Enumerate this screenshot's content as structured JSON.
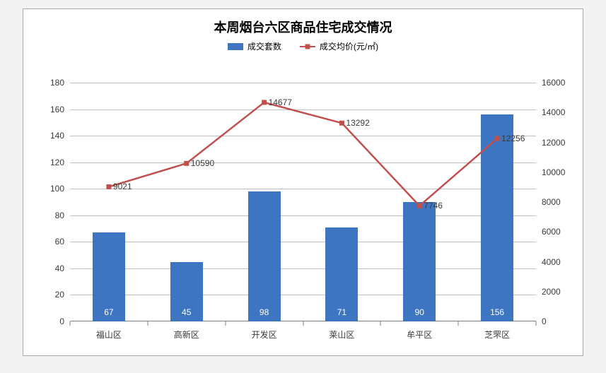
{
  "chart": {
    "type": "bar+line",
    "title": "本周烟台六区商品住宅成交情况",
    "title_fontsize": 18,
    "title_fontweight": 700,
    "background_color": "#f3f3f3",
    "panel_background": "#ffffff",
    "panel_border": "#a9a9a9",
    "grid_color": "#bfbfbf",
    "axis_color": "#808080",
    "label_font": "Microsoft YaHei",
    "label_fontsize": 12,
    "legend": {
      "bar": {
        "label": "成交套数",
        "color": "#3e75c3"
      },
      "line": {
        "label": "成交均价(元/㎡)",
        "color": "#c0504d"
      }
    },
    "categories": [
      "福山区",
      "高新区",
      "开发区",
      "莱山区",
      "牟平区",
      "芝罘区"
    ],
    "bar_values": [
      67,
      45,
      98,
      71,
      90,
      156
    ],
    "bar_color": "#3e75c3",
    "bar_width": 0.42,
    "line_values": [
      9021,
      10590,
      14677,
      13292,
      7746,
      12256
    ],
    "line_color": "#c0504d",
    "line_width": 2.5,
    "marker_size": 7,
    "y_left": {
      "min": 0,
      "max": 180,
      "step": 20
    },
    "y_right": {
      "min": 0,
      "max": 16000,
      "step": 2000
    }
  }
}
